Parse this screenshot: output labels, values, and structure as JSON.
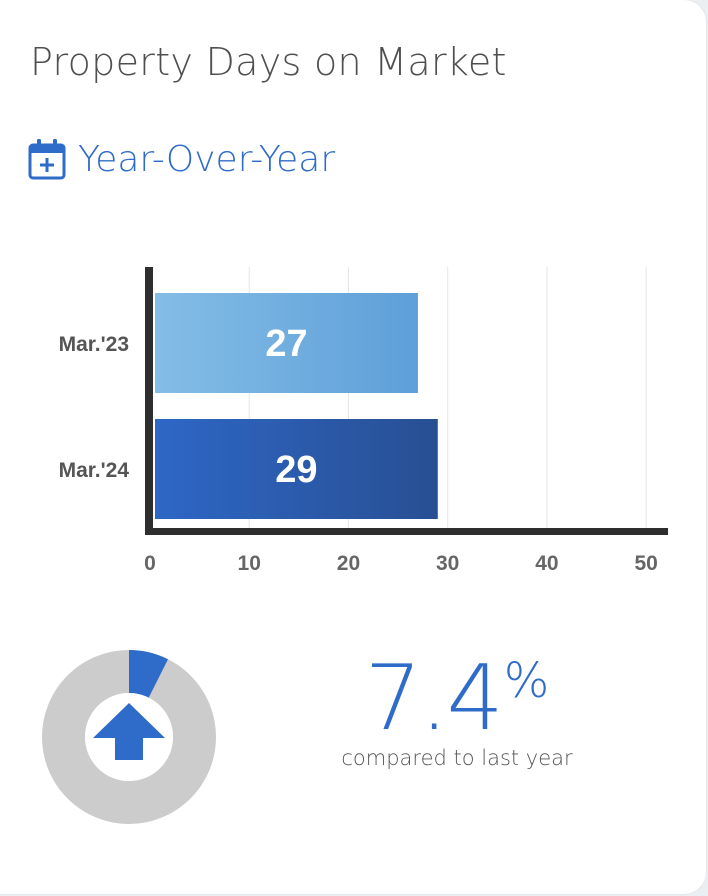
{
  "header": {
    "title": "Property Days on Market",
    "subtitle": "Year-Over-Year",
    "subtitle_icon": "calendar-plus-icon"
  },
  "chart_data": {
    "type": "bar",
    "orientation": "horizontal",
    "categories": [
      "Mar.'23",
      "Mar.'24"
    ],
    "values": [
      27,
      29
    ],
    "data_labels": [
      "27",
      "29"
    ],
    "xlim": [
      0,
      52
    ],
    "xticks": [
      0,
      10,
      20,
      30,
      40,
      50
    ],
    "xtick_labels": [
      "0",
      "10",
      "20",
      "30",
      "40",
      "50"
    ],
    "grid": true,
    "bar_colors": [
      [
        "#84bde6",
        "#5e9fd9"
      ],
      [
        "#2e67c6",
        "#284f93"
      ]
    ],
    "title": "",
    "xlabel": "",
    "ylabel": ""
  },
  "summary": {
    "change_value": "7.4",
    "change_symbol": "%",
    "change_fraction": 0.074,
    "direction": "up",
    "direction_icon": "arrow-up-icon",
    "caption": "compared to last year",
    "accent_color": "#2f6bc8",
    "track_color": "#cccccc"
  }
}
